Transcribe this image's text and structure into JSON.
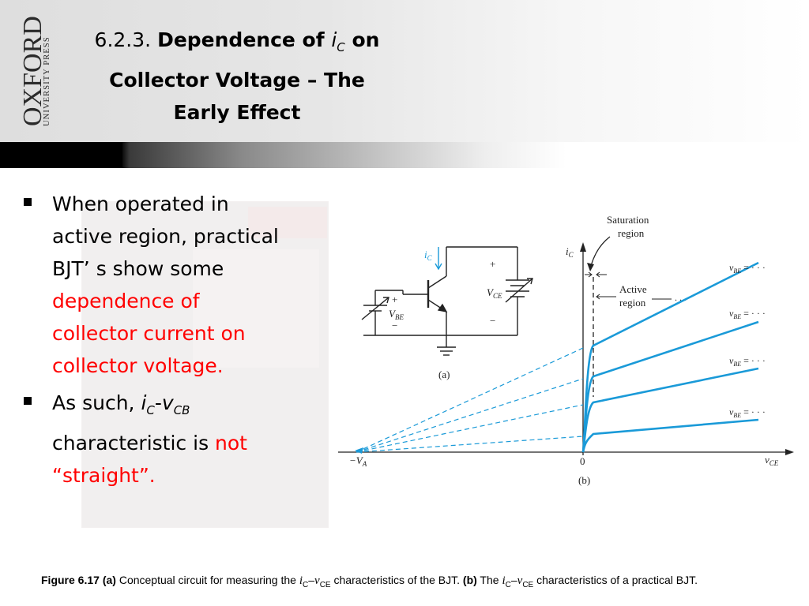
{
  "header": {
    "logo_text": "OXFORD",
    "logo_subtext": "UNIVERSITY PRESS",
    "title_number": "6.2.3.",
    "title_line1_prefix": "Dependence of ",
    "title_var": "i",
    "title_var_sub": "C",
    "title_line1_suffix": " on",
    "title_line2": "Collector Voltage – The",
    "title_line3": "Early Effect"
  },
  "bullets": {
    "b1_line1": "When operated in",
    "b1_line2": "active region, practical",
    "b1_line3": "BJT’ s show some",
    "b1_red_line1": "dependence of",
    "b1_red_line2": "collector current on",
    "b1_red_line3": "collector voltage.",
    "b2_prefix": "As such, ",
    "b2_var1": "i",
    "b2_var1_sub": "C",
    "b2_dash": "-",
    "b2_var2": "v",
    "b2_var2_sub": "CB",
    "b2_line2": "characteristic is ",
    "b2_red1": "not",
    "b2_red2": "“straight”."
  },
  "figure": {
    "circuit": {
      "ic_label": "i",
      "ic_sub": "C",
      "plus": "+",
      "minus": "−",
      "vbe_label": "V",
      "vbe_sub": "BE",
      "vce_label": "V",
      "vce_sub": "CE",
      "panel_label": "(a)"
    },
    "graph": {
      "y_axis_label": "i",
      "y_axis_sub": "C",
      "x_axis_label": "v",
      "x_axis_sub": "CE",
      "origin_label": "0",
      "va_label": "−V",
      "va_sub": "A",
      "saturation_label_1": "Saturation",
      "saturation_label_2": "region",
      "active_label_1": "Active",
      "active_label_2": "region",
      "curve_label_prefix": "v",
      "curve_label_sub": "BE",
      "curve_label_suffix": " = · · ·",
      "panel_label": "(b)",
      "curve_color": "#1a9ad8"
    }
  },
  "caption": {
    "fig_label": "Figure 6.17",
    "part_a": "(a)",
    "text1": " Conceptual circuit for measuring the ",
    "var1": "i",
    "var1_sub": "C",
    "dash": "–",
    "var2": "v",
    "var2_sub": "CE",
    "text2": " characteristics of the BJT. ",
    "part_b": "(b)",
    "text3": " The ",
    "text4": " characteristics of a practical BJT."
  }
}
